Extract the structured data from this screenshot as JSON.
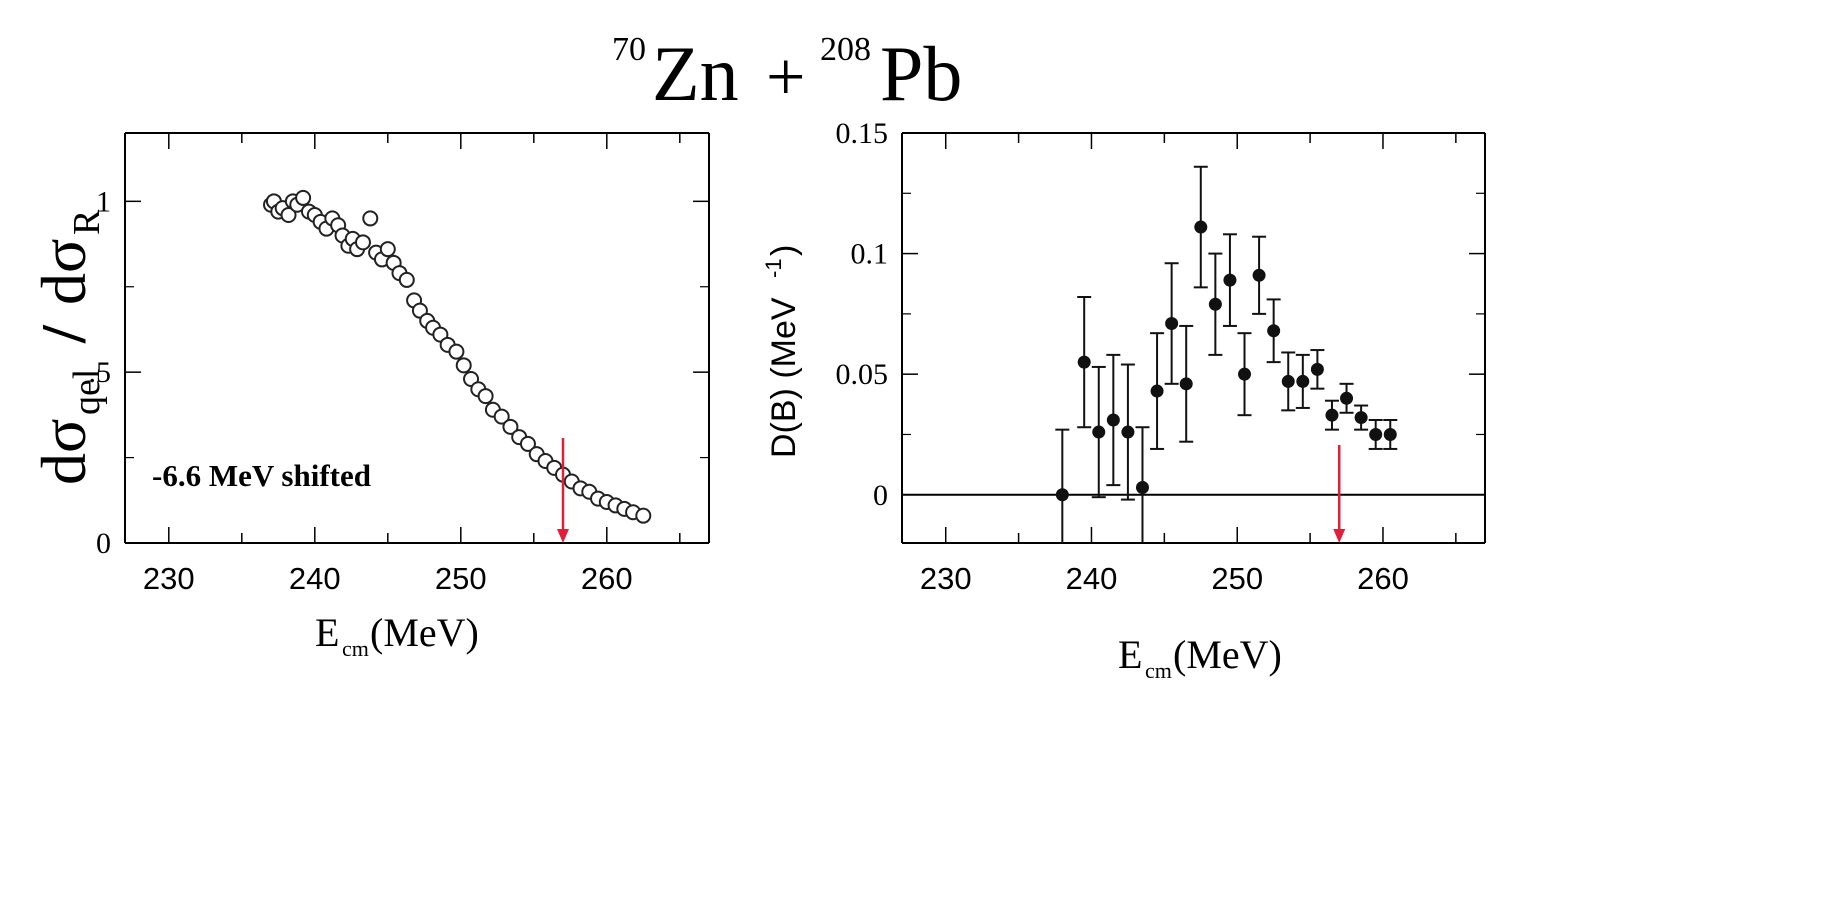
{
  "figure": {
    "title": {
      "A1": "70",
      "el1": "Zn",
      "plus": "+",
      "A2": "208",
      "el2": "Pb"
    }
  },
  "chart_data": [
    {
      "type": "scatter",
      "marker": "open-circle",
      "xlabel": {
        "main": "E",
        "sub": "cm",
        "tail": "(MeV)"
      },
      "ylabel": {
        "a": "dσ",
        "asub": "qel",
        "slash": "/",
        "b": "dσ",
        "bsub": "R"
      },
      "xlim": [
        227,
        267
      ],
      "ylim": [
        0,
        1.2
      ],
      "xticks": [
        230,
        240,
        250,
        260
      ],
      "yticks": [
        0,
        0.5,
        1
      ],
      "yticklabels": [
        "0",
        ".5",
        "1"
      ],
      "annotation": "-6.6 MeV shifted",
      "arrow_x": 257,
      "arrow_color": "#e0203a",
      "points": [
        [
          237.0,
          0.99
        ],
        [
          237.2,
          1.0
        ],
        [
          237.5,
          0.97
        ],
        [
          237.8,
          0.98
        ],
        [
          238.2,
          0.96
        ],
        [
          238.5,
          1.0
        ],
        [
          238.8,
          0.99
        ],
        [
          239.2,
          1.01
        ],
        [
          239.6,
          0.97
        ],
        [
          240.0,
          0.96
        ],
        [
          240.4,
          0.94
        ],
        [
          240.8,
          0.92
        ],
        [
          241.2,
          0.95
        ],
        [
          241.6,
          0.93
        ],
        [
          241.9,
          0.9
        ],
        [
          242.3,
          0.87
        ],
        [
          242.6,
          0.89
        ],
        [
          242.9,
          0.86
        ],
        [
          243.3,
          0.88
        ],
        [
          243.8,
          0.95
        ],
        [
          244.2,
          0.85
        ],
        [
          244.6,
          0.83
        ],
        [
          245.0,
          0.86
        ],
        [
          245.4,
          0.82
        ],
        [
          245.8,
          0.79
        ],
        [
          246.3,
          0.77
        ],
        [
          246.8,
          0.71
        ],
        [
          247.2,
          0.68
        ],
        [
          247.7,
          0.65
        ],
        [
          248.1,
          0.63
        ],
        [
          248.6,
          0.61
        ],
        [
          249.1,
          0.58
        ],
        [
          249.7,
          0.56
        ],
        [
          250.2,
          0.52
        ],
        [
          250.7,
          0.48
        ],
        [
          251.2,
          0.45
        ],
        [
          251.7,
          0.43
        ],
        [
          252.2,
          0.39
        ],
        [
          252.8,
          0.37
        ],
        [
          253.4,
          0.34
        ],
        [
          254.0,
          0.31
        ],
        [
          254.6,
          0.29
        ],
        [
          255.2,
          0.26
        ],
        [
          255.8,
          0.24
        ],
        [
          256.4,
          0.22
        ],
        [
          257.0,
          0.2
        ],
        [
          257.6,
          0.18
        ],
        [
          258.2,
          0.16
        ],
        [
          258.8,
          0.15
        ],
        [
          259.4,
          0.13
        ],
        [
          260.0,
          0.12
        ],
        [
          260.6,
          0.11
        ],
        [
          261.2,
          0.1
        ],
        [
          261.8,
          0.09
        ],
        [
          262.5,
          0.08
        ]
      ]
    },
    {
      "type": "scatter",
      "marker": "filled-circle-errorbar",
      "xlabel": {
        "main": "E",
        "sub": "cm",
        "tail": "(MeV)"
      },
      "ylabel": {
        "text": "D(B) (MeV",
        "sup": "-1",
        "close": ")"
      },
      "xlim": [
        227,
        267
      ],
      "ylim": [
        -0.02,
        0.15
      ],
      "xticks": [
        230,
        240,
        250,
        260
      ],
      "yticks": [
        0,
        0.05,
        0.1,
        0.15
      ],
      "yticklabels": [
        "0",
        "0.05",
        "0.1",
        "0.15"
      ],
      "zero_line": true,
      "arrow_x": 257,
      "arrow_color": "#e0203a",
      "points": [
        {
          "x": 238.0,
          "y": 0.0,
          "err": 0.027
        },
        {
          "x": 239.5,
          "y": 0.055,
          "err": 0.027
        },
        {
          "x": 240.5,
          "y": 0.026,
          "err": 0.027
        },
        {
          "x": 241.5,
          "y": 0.031,
          "err": 0.027
        },
        {
          "x": 242.5,
          "y": 0.026,
          "err": 0.028
        },
        {
          "x": 243.5,
          "y": 0.003,
          "err": 0.025
        },
        {
          "x": 244.5,
          "y": 0.043,
          "err": 0.024
        },
        {
          "x": 245.5,
          "y": 0.071,
          "err": 0.025
        },
        {
          "x": 246.5,
          "y": 0.046,
          "err": 0.024
        },
        {
          "x": 247.5,
          "y": 0.111,
          "err": 0.025
        },
        {
          "x": 248.5,
          "y": 0.079,
          "err": 0.021
        },
        {
          "x": 249.5,
          "y": 0.089,
          "err": 0.019
        },
        {
          "x": 250.5,
          "y": 0.05,
          "err": 0.017
        },
        {
          "x": 251.5,
          "y": 0.091,
          "err": 0.016
        },
        {
          "x": 252.5,
          "y": 0.068,
          "err": 0.013
        },
        {
          "x": 253.5,
          "y": 0.047,
          "err": 0.012
        },
        {
          "x": 254.5,
          "y": 0.047,
          "err": 0.011
        },
        {
          "x": 255.5,
          "y": 0.052,
          "err": 0.008
        },
        {
          "x": 256.5,
          "y": 0.033,
          "err": 0.006
        },
        {
          "x": 257.5,
          "y": 0.04,
          "err": 0.006
        },
        {
          "x": 258.5,
          "y": 0.032,
          "err": 0.005
        },
        {
          "x": 259.5,
          "y": 0.025,
          "err": 0.006
        },
        {
          "x": 260.5,
          "y": 0.025,
          "err": 0.006
        }
      ]
    }
  ]
}
